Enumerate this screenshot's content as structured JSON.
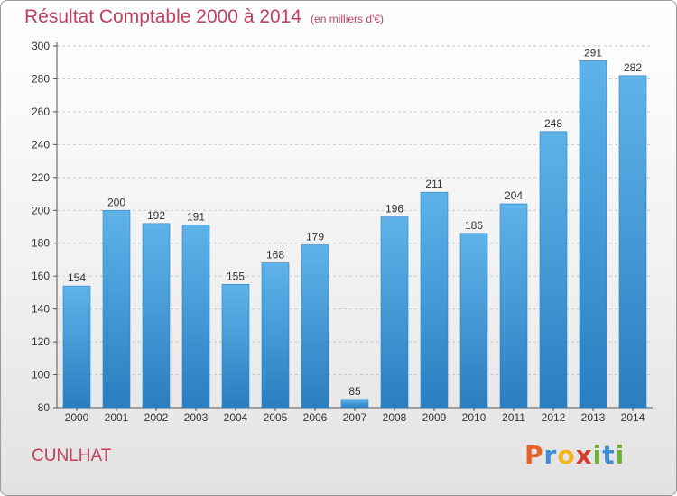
{
  "chart_data": {
    "type": "bar",
    "title": "Résultat Comptable 2000 à 2014",
    "subtitle": "(en milliers d'€)",
    "categories": [
      "2000",
      "2001",
      "2002",
      "2003",
      "2004",
      "2005",
      "2006",
      "2007",
      "2008",
      "2009",
      "2010",
      "2011",
      "2012",
      "2013",
      "2014"
    ],
    "values": [
      154,
      200,
      192,
      191,
      155,
      168,
      179,
      85,
      196,
      211,
      186,
      204,
      248,
      291,
      282
    ],
    "ylim": [
      80,
      300
    ],
    "yticks": [
      80,
      100,
      120,
      140,
      160,
      180,
      200,
      220,
      240,
      260,
      280,
      300
    ],
    "grid": true,
    "bar_color": "#3a96d6"
  },
  "place_name": "CUNLHAT",
  "logo": {
    "letters": [
      "P",
      "r",
      "o",
      "x",
      "i",
      "t",
      "i"
    ],
    "colors": [
      "#e8632a",
      "#3d8fd4",
      "#f2b51e",
      "#d63a2f",
      "#6bb134",
      "#3d8fd4",
      "#6bb134"
    ]
  }
}
